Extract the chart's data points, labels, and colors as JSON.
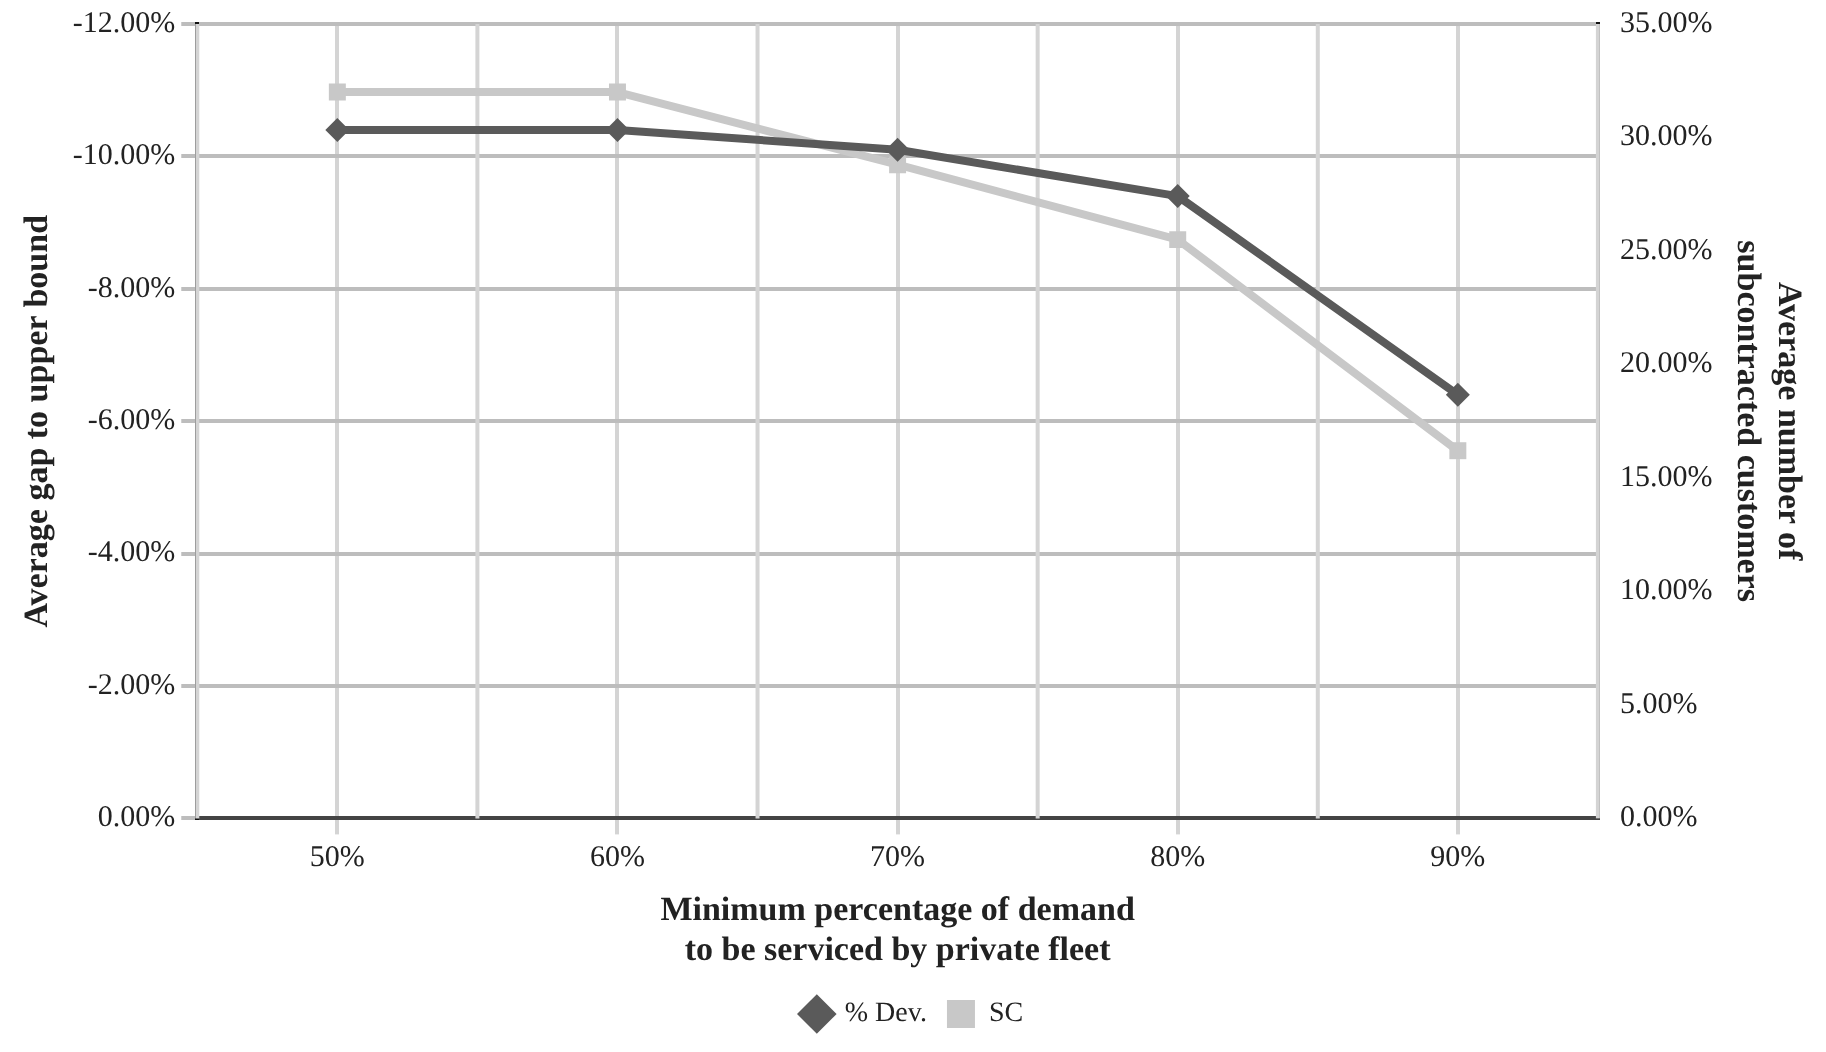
{
  "chart_data": {
    "type": "line",
    "xlabel": "Minimum percentage of demand\nto be serviced by private fleet",
    "ylabel": "Average gap to upper bound",
    "y2label": "Average number of\nsubcontracted customers",
    "categories": [
      "50%",
      "60%",
      "70%",
      "80%",
      "90%"
    ],
    "series": [
      {
        "name": "% Dev.",
        "color": "#5a5a5a",
        "marker": "diamond",
        "values": [
          -10.4,
          -10.4,
          -10.1,
          -9.4,
          -6.4
        ]
      },
      {
        "name": "SC",
        "color": "#c8c8c8",
        "marker": "square",
        "axis": "y2",
        "values": [
          32.0,
          32.0,
          28.8,
          25.5,
          16.2
        ]
      }
    ],
    "ylim": [
      0,
      -12
    ],
    "yticks": [
      {
        "value": 0,
        "label": "0.00%"
      },
      {
        "value": -2,
        "label": "-2.00%"
      },
      {
        "value": -4,
        "label": "-4.00%"
      },
      {
        "value": -6,
        "label": "-6.00%"
      },
      {
        "value": -8,
        "label": "-8.00%"
      },
      {
        "value": -10,
        "label": "-10.00%"
      },
      {
        "value": -12,
        "label": "-12.00%"
      }
    ],
    "y2lim": [
      0,
      35
    ],
    "y2ticks": [
      {
        "value": 0,
        "label": "0.00%"
      },
      {
        "value": 5,
        "label": "5.00%"
      },
      {
        "value": 10,
        "label": "10.00%"
      },
      {
        "value": 15,
        "label": "15.00%"
      },
      {
        "value": 20,
        "label": "20.00%"
      },
      {
        "value": 25,
        "label": "25.00%"
      },
      {
        "value": 30,
        "label": "30.00%"
      },
      {
        "value": 35,
        "label": "35.00%"
      }
    ],
    "grid": true,
    "legend": "bottom",
    "line_style": "solid"
  }
}
